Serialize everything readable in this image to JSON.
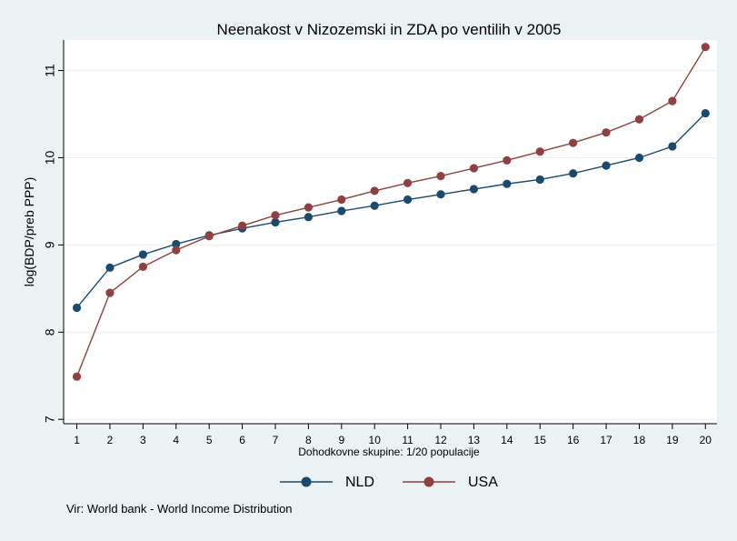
{
  "chart_data": {
    "type": "line",
    "title": "Neenakost v Nizozemski in ZDA po ventilih v 2005",
    "xlabel": "Dohodkovne skupine: 1/20 populacije",
    "ylabel": "log(BDP/preb PPP)",
    "x": [
      1,
      2,
      3,
      4,
      5,
      6,
      7,
      8,
      9,
      10,
      11,
      12,
      13,
      14,
      15,
      16,
      17,
      18,
      19,
      20
    ],
    "x_tick_labels": [
      "1",
      "2",
      "3",
      "4",
      "5",
      "6",
      "7",
      "8",
      "9",
      "10",
      "11",
      "12",
      "13",
      "14",
      "15",
      "16",
      "17",
      "18",
      "19",
      "20"
    ],
    "y_ticks": [
      7,
      8,
      9,
      10,
      11
    ],
    "y_tick_labels": [
      "7",
      "8",
      "9",
      "10",
      "11"
    ],
    "ylim": [
      6.95,
      11.35
    ],
    "xlim": [
      0.6,
      20.35
    ],
    "grid": true,
    "legend_position": "bottom",
    "series": [
      {
        "name": "NLD",
        "color": "#1a4a6e",
        "values": [
          8.28,
          8.74,
          8.89,
          9.01,
          9.11,
          9.19,
          9.26,
          9.32,
          9.39,
          9.45,
          9.52,
          9.58,
          9.64,
          9.7,
          9.75,
          9.82,
          9.91,
          10.0,
          10.13,
          10.51
        ]
      },
      {
        "name": "USA",
        "color": "#904040",
        "values": [
          7.49,
          8.45,
          8.75,
          8.94,
          9.1,
          9.22,
          9.34,
          9.43,
          9.52,
          9.62,
          9.71,
          9.79,
          9.88,
          9.97,
          10.07,
          10.17,
          10.29,
          10.44,
          10.65,
          11.27
        ]
      }
    ]
  },
  "footer": {
    "source": "Vir: World bank - World Income Distribution"
  }
}
